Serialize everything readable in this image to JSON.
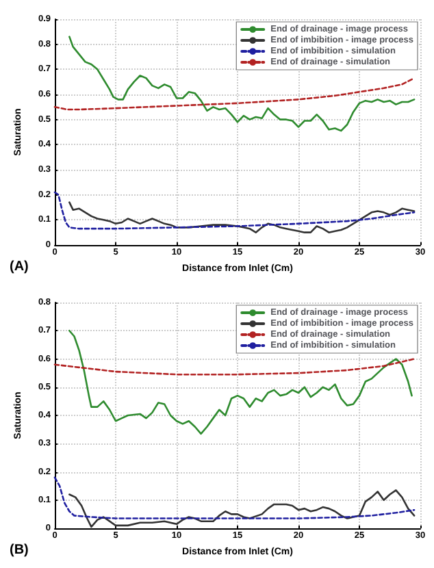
{
  "chart_data": [
    {
      "type": "line",
      "title": "(A)",
      "xlabel": "Distance from Inlet (Cm)",
      "ylabel": "Saturation",
      "xlim": [
        0,
        30
      ],
      "xticks": [
        0,
        5,
        10,
        15,
        20,
        25,
        30
      ],
      "ylim": [
        0,
        0.9
      ],
      "yticks": [
        0,
        0.1,
        0.2,
        0.3,
        0.4,
        0.5,
        0.6,
        0.7,
        0.8,
        0.9
      ],
      "grid": true,
      "legend": "top right",
      "marker": "none",
      "series": [
        {
          "name": "End of drainage - image process",
          "color": "#2e8b2e",
          "line_style": "solid",
          "x": [
            1.2,
            1.5,
            2,
            2.5,
            3,
            3.5,
            4,
            4.5,
            4.8,
            5.2,
            5.6,
            6,
            6.5,
            7,
            7.5,
            8,
            8.5,
            9,
            9.5,
            10,
            10.5,
            11,
            11.5,
            12,
            12.5,
            13,
            13.5,
            14,
            14.5,
            15,
            15.5,
            16,
            16.5,
            17,
            17.5,
            18,
            18.5,
            19,
            19.5,
            20,
            20.5,
            21,
            21.5,
            22,
            22.5,
            23,
            23.5,
            24,
            24.5,
            25,
            25.5,
            26,
            26.5,
            27,
            27.5,
            28,
            28.5,
            29,
            29.5
          ],
          "values": [
            0.83,
            0.79,
            0.76,
            0.73,
            0.72,
            0.7,
            0.66,
            0.62,
            0.59,
            0.58,
            0.58,
            0.62,
            0.65,
            0.675,
            0.665,
            0.635,
            0.625,
            0.64,
            0.63,
            0.585,
            0.585,
            0.61,
            0.605,
            0.575,
            0.535,
            0.55,
            0.54,
            0.545,
            0.52,
            0.49,
            0.515,
            0.5,
            0.51,
            0.505,
            0.545,
            0.52,
            0.5,
            0.5,
            0.495,
            0.47,
            0.495,
            0.495,
            0.52,
            0.495,
            0.46,
            0.465,
            0.455,
            0.48,
            0.53,
            0.565,
            0.575,
            0.57,
            0.58,
            0.57,
            0.575,
            0.56,
            0.57,
            0.57,
            0.58
          ]
        },
        {
          "name": "End of imbibition - image process",
          "color": "#333333",
          "line_style": "solid",
          "x": [
            1.2,
            1.5,
            2,
            2.5,
            3,
            3.5,
            4,
            4.5,
            5,
            5.5,
            6,
            6.5,
            7,
            7.5,
            8,
            8.5,
            9,
            9.5,
            10,
            11,
            12,
            13,
            14,
            15,
            15.5,
            16,
            16.5,
            17,
            17.5,
            18,
            18.5,
            19,
            19.5,
            20,
            20.5,
            21,
            21.5,
            22,
            22.5,
            23,
            23.5,
            24,
            24.5,
            25,
            25.5,
            26,
            26.5,
            27,
            27.5,
            28,
            28.5,
            29,
            29.5
          ],
          "values": [
            0.17,
            0.14,
            0.145,
            0.13,
            0.115,
            0.105,
            0.1,
            0.095,
            0.085,
            0.09,
            0.105,
            0.095,
            0.085,
            0.095,
            0.105,
            0.095,
            0.085,
            0.08,
            0.07,
            0.07,
            0.075,
            0.08,
            0.08,
            0.075,
            0.07,
            0.065,
            0.05,
            0.07,
            0.085,
            0.08,
            0.07,
            0.065,
            0.06,
            0.055,
            0.05,
            0.05,
            0.075,
            0.065,
            0.05,
            0.055,
            0.06,
            0.07,
            0.085,
            0.1,
            0.115,
            0.13,
            0.135,
            0.13,
            0.12,
            0.13,
            0.145,
            0.14,
            0.135
          ]
        },
        {
          "name": "End of imbibition - simulation",
          "color": "#1f1fa0",
          "line_style": "dashed",
          "x": [
            0,
            0.3,
            0.6,
            0.9,
            1.2,
            2,
            5,
            10,
            15,
            20,
            24,
            26,
            28,
            29.5
          ],
          "values": [
            0.21,
            0.2,
            0.14,
            0.09,
            0.07,
            0.065,
            0.065,
            0.07,
            0.075,
            0.085,
            0.095,
            0.105,
            0.12,
            0.13
          ]
        },
        {
          "name": "End of drainage - simulation",
          "color": "#b22222",
          "line_style": "dashed",
          "x": [
            0,
            1,
            2,
            5,
            10,
            15,
            20,
            23,
            25,
            27,
            28.5,
            29.5
          ],
          "values": [
            0.55,
            0.54,
            0.54,
            0.545,
            0.555,
            0.565,
            0.58,
            0.595,
            0.61,
            0.625,
            0.64,
            0.665
          ]
        }
      ]
    },
    {
      "type": "line",
      "title": "(B)",
      "xlabel": "Distance from Inlet (Cm)",
      "ylabel": "Saturation",
      "xlim": [
        0,
        30
      ],
      "xticks": [
        0,
        5,
        10,
        15,
        20,
        25,
        30
      ],
      "ylim": [
        0,
        0.8
      ],
      "yticks": [
        0,
        0.1,
        0.2,
        0.3,
        0.4,
        0.5,
        0.6,
        0.7,
        0.8
      ],
      "grid": true,
      "legend": "top right",
      "marker": "none",
      "series": [
        {
          "name": "End of drainage - image process",
          "color": "#2e8b2e",
          "line_style": "solid",
          "x": [
            1.2,
            1.6,
            2,
            2.4,
            2.8,
            3,
            3.5,
            4,
            4.5,
            5,
            5.5,
            6,
            7,
            7.5,
            8,
            8.5,
            9,
            9.5,
            10,
            10.5,
            11,
            11.5,
            12,
            12.5,
            13,
            13.5,
            14,
            14.5,
            15,
            15.5,
            16,
            16.5,
            17,
            17.5,
            18,
            18.5,
            19,
            19.5,
            20,
            20.5,
            21,
            21.5,
            22,
            22.5,
            23,
            23.5,
            24,
            24.5,
            25,
            25.5,
            26,
            26.5,
            27,
            27.5,
            28,
            28.5,
            29,
            29.3
          ],
          "values": [
            0.7,
            0.68,
            0.63,
            0.56,
            0.47,
            0.43,
            0.43,
            0.45,
            0.42,
            0.38,
            0.39,
            0.4,
            0.405,
            0.39,
            0.41,
            0.445,
            0.44,
            0.4,
            0.38,
            0.37,
            0.38,
            0.36,
            0.335,
            0.36,
            0.39,
            0.42,
            0.4,
            0.46,
            0.47,
            0.46,
            0.43,
            0.46,
            0.45,
            0.48,
            0.49,
            0.47,
            0.475,
            0.49,
            0.48,
            0.5,
            0.465,
            0.48,
            0.5,
            0.49,
            0.51,
            0.46,
            0.435,
            0.44,
            0.47,
            0.52,
            0.53,
            0.55,
            0.57,
            0.585,
            0.6,
            0.58,
            0.52,
            0.47
          ]
        },
        {
          "name": "End of imbibition - image process",
          "color": "#333333",
          "line_style": "solid",
          "x": [
            1.2,
            1.7,
            2.2,
            2.6,
            3,
            3.5,
            4,
            4.5,
            5,
            6,
            7,
            8,
            9,
            10,
            10.5,
            11,
            11.5,
            12,
            13,
            13.5,
            14,
            14.5,
            15,
            15.5,
            16,
            17,
            17.5,
            18,
            19,
            19.5,
            20,
            20.5,
            21,
            21.5,
            22,
            22.5,
            23,
            23.5,
            24,
            24.5,
            25,
            25.5,
            26,
            26.5,
            27,
            27.5,
            28,
            28.5,
            29,
            29.5
          ],
          "values": [
            0.12,
            0.11,
            0.08,
            0.04,
            0.005,
            0.03,
            0.04,
            0.025,
            0.01,
            0.01,
            0.02,
            0.02,
            0.025,
            0.015,
            0.03,
            0.04,
            0.035,
            0.025,
            0.025,
            0.045,
            0.06,
            0.05,
            0.05,
            0.04,
            0.035,
            0.05,
            0.07,
            0.085,
            0.085,
            0.08,
            0.065,
            0.07,
            0.06,
            0.065,
            0.075,
            0.07,
            0.06,
            0.045,
            0.035,
            0.04,
            0.045,
            0.095,
            0.11,
            0.13,
            0.1,
            0.12,
            0.135,
            0.11,
            0.07,
            0.045
          ]
        },
        {
          "name": "End of drainage - simulation",
          "color": "#b22222",
          "line_style": "dashed",
          "x": [
            0,
            2,
            5,
            10,
            15,
            20,
            24,
            27,
            28.5,
            29.5
          ],
          "values": [
            0.58,
            0.57,
            0.555,
            0.545,
            0.545,
            0.55,
            0.56,
            0.575,
            0.59,
            0.6
          ]
        },
        {
          "name": "End of imbibition - simulation",
          "color": "#1f1fa0",
          "line_style": "dashed",
          "x": [
            0,
            0.4,
            0.8,
            1.2,
            1.6,
            3,
            5,
            10,
            15,
            20,
            24,
            26,
            28,
            29.5
          ],
          "values": [
            0.18,
            0.15,
            0.09,
            0.06,
            0.045,
            0.04,
            0.035,
            0.035,
            0.035,
            0.035,
            0.04,
            0.045,
            0.055,
            0.065
          ]
        }
      ]
    }
  ]
}
